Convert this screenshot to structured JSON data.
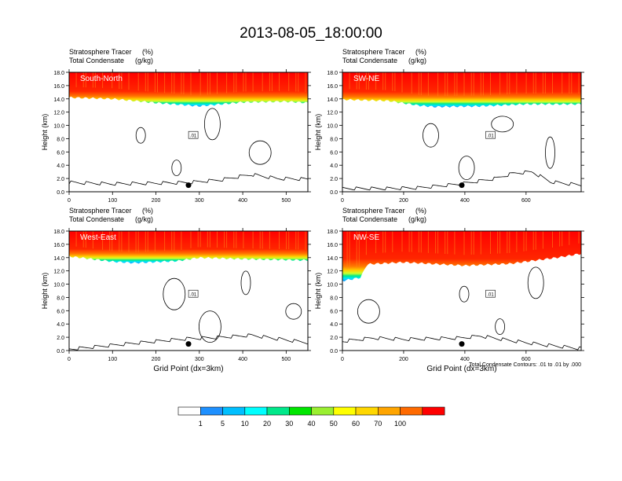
{
  "page": {
    "title": "2013-08-05_18:00:00"
  },
  "chart_data": {
    "type": "cross-section",
    "subtitle_left": "Stratosphere Tracer",
    "subtitle_left2": "Total Condensate",
    "subtitle_unit": "(%)",
    "subtitle_unit2": "(g/kg)",
    "ylabel": "Height (km)",
    "xlabel": "Grid Point (dx=3km)",
    "footnote": "Total Condensate Contours: .01 to .01 by .000",
    "contour_label": ".01",
    "yticks": [
      "0.0",
      "2.0",
      "4.0",
      "6.0",
      "8.0",
      "10.0",
      "12.0",
      "14.0",
      "16.0",
      "18.0"
    ],
    "ylim": [
      0,
      18
    ],
    "colorbar": {
      "labels": [
        "1",
        "5",
        "10",
        "20",
        "30",
        "40",
        "50",
        "60",
        "70",
        "100"
      ],
      "colors": [
        "#ffffff",
        "#1e90ff",
        "#00bfff",
        "#00ffff",
        "#00e88a",
        "#00e600",
        "#9aef30",
        "#ffff00",
        "#ffd700",
        "#ffa500",
        "#ff6a00",
        "#ff0000"
      ]
    },
    "panels": [
      {
        "name": "South-North",
        "xmax": 550,
        "xticks": [
          "0",
          "100",
          "200",
          "300",
          "400",
          "500"
        ],
        "marker_x": 275,
        "tropopause": [
          [
            0,
            14.2
          ],
          [
            100,
            14.0
          ],
          [
            200,
            13.4
          ],
          [
            300,
            12.9
          ],
          [
            400,
            13.5
          ],
          [
            500,
            13.6
          ],
          [
            550,
            13.4
          ]
        ],
        "terrain": [
          [
            0,
            1.4
          ],
          [
            100,
            1.2
          ],
          [
            200,
            1.3
          ],
          [
            275,
            1.4
          ],
          [
            350,
            1.8
          ],
          [
            420,
            2.6
          ],
          [
            480,
            2.0
          ],
          [
            550,
            1.9
          ]
        ]
      },
      {
        "name": "SW-NE",
        "xmax": 780,
        "xticks": [
          "0",
          "200",
          "400",
          "600"
        ],
        "marker_x": 390,
        "tropopause": [
          [
            0,
            13.9
          ],
          [
            150,
            13.7
          ],
          [
            250,
            13.0
          ],
          [
            300,
            12.8
          ],
          [
            450,
            12.9
          ],
          [
            600,
            13.2
          ],
          [
            780,
            13.2
          ]
        ],
        "terrain": [
          [
            0,
            0.5
          ],
          [
            150,
            0.5
          ],
          [
            250,
            0.6
          ],
          [
            390,
            1.2
          ],
          [
            500,
            2.0
          ],
          [
            560,
            2.8
          ],
          [
            620,
            3.0
          ],
          [
            680,
            1.5
          ],
          [
            780,
            1.0
          ]
        ]
      },
      {
        "name": "West-East",
        "xmax": 550,
        "xticks": [
          "0",
          "100",
          "200",
          "300",
          "400",
          "500"
        ],
        "marker_x": 275,
        "tropopause": [
          [
            0,
            14.2
          ],
          [
            100,
            13.4
          ],
          [
            150,
            13.2
          ],
          [
            250,
            13.5
          ],
          [
            300,
            14.0
          ],
          [
            400,
            13.8
          ],
          [
            550,
            13.6
          ]
        ],
        "terrain": [
          [
            0,
            0.2
          ],
          [
            50,
            0.5
          ],
          [
            100,
            0.8
          ],
          [
            200,
            1.4
          ],
          [
            275,
            1.8
          ],
          [
            350,
            2.0
          ],
          [
            420,
            2.3
          ],
          [
            500,
            1.6
          ],
          [
            550,
            1.2
          ]
        ]
      },
      {
        "name": "NW-SE",
        "xmax": 780,
        "xticks": [
          "0",
          "200",
          "400",
          "600"
        ],
        "marker_x": 390,
        "tropopause": [
          [
            0,
            10.5
          ],
          [
            60,
            11.0
          ],
          [
            80,
            13.0
          ],
          [
            200,
            13.3
          ],
          [
            400,
            12.8
          ],
          [
            550,
            13.1
          ],
          [
            700,
            14.0
          ],
          [
            780,
            14.6
          ]
        ],
        "terrain": [
          [
            0,
            1.4
          ],
          [
            100,
            1.9
          ],
          [
            200,
            1.7
          ],
          [
            390,
            1.9
          ],
          [
            450,
            2.2
          ],
          [
            550,
            1.5
          ],
          [
            650,
            0.9
          ],
          [
            780,
            0.3
          ]
        ]
      }
    ]
  }
}
